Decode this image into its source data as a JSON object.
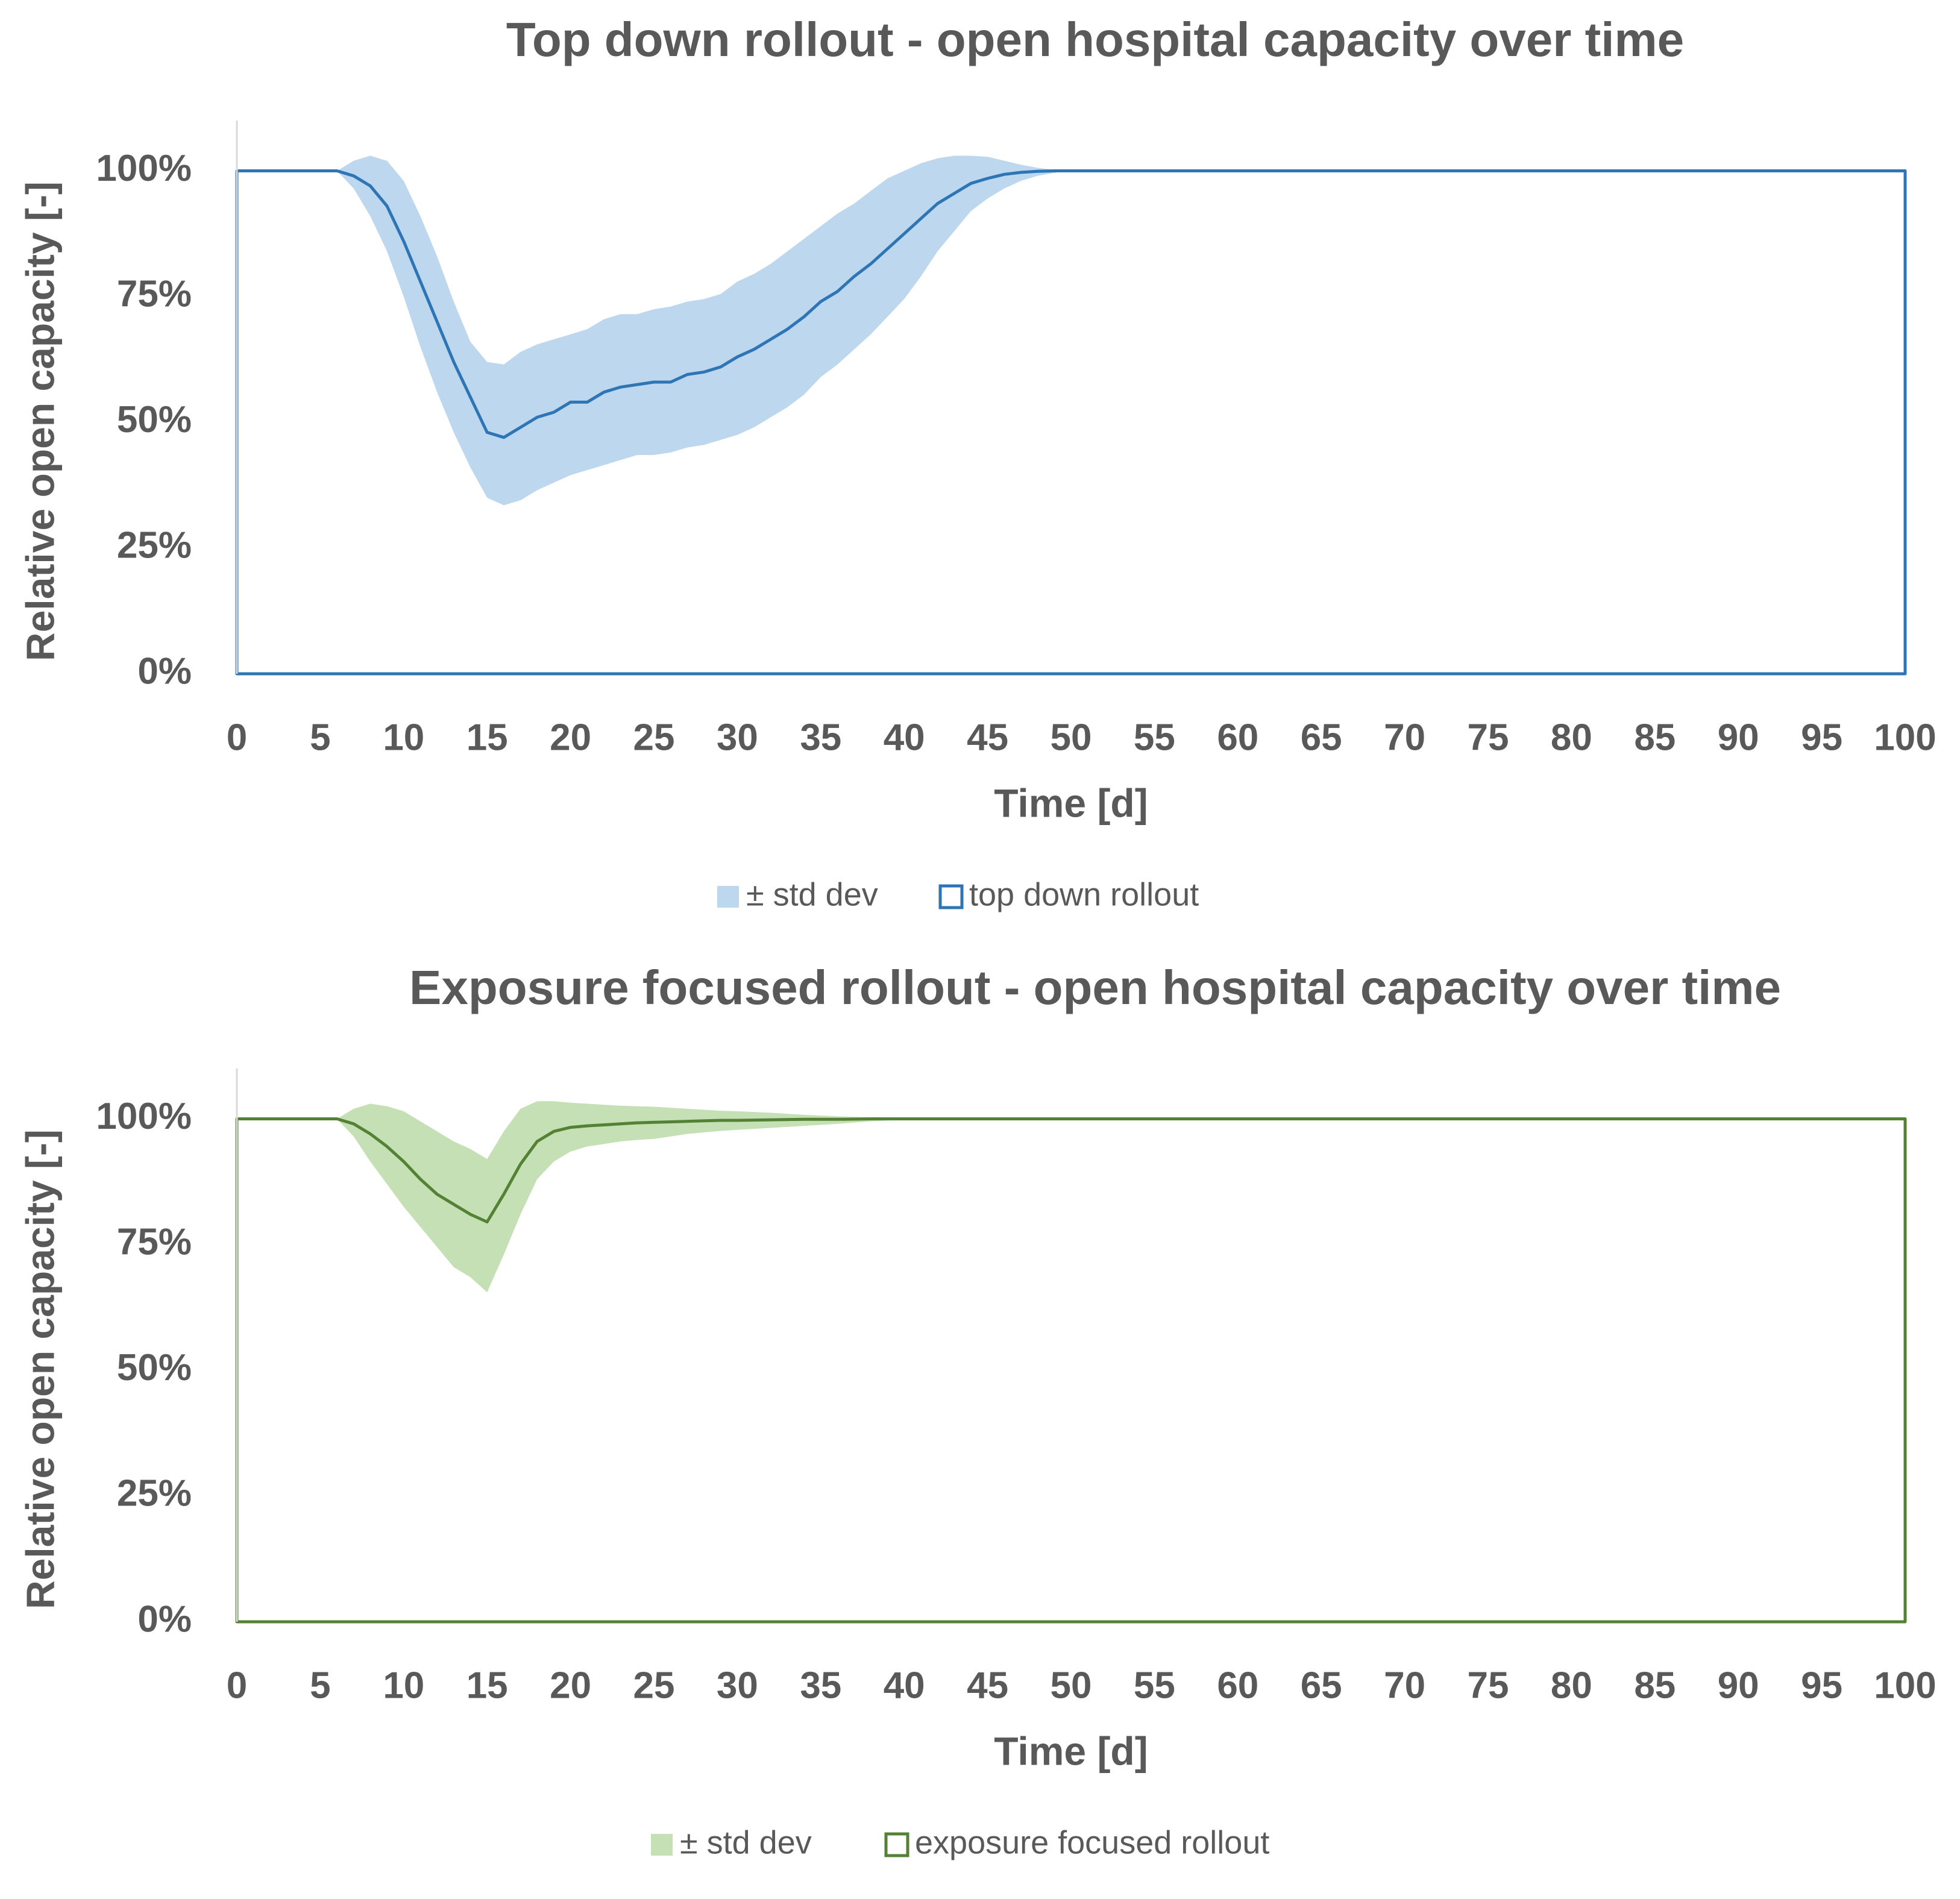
{
  "chart_data": [
    {
      "type": "line",
      "title": "Top down rollout - open hospital capacity over time",
      "xlabel": "Time [d]",
      "ylabel": "Relative open capacity [-]",
      "xlim": [
        0,
        100
      ],
      "ylim": [
        0,
        1.1
      ],
      "x_ticks": [
        "0",
        "5",
        "10",
        "15",
        "20",
        "25",
        "30",
        "35",
        "40",
        "45",
        "50",
        "55",
        "60",
        "65",
        "70",
        "75",
        "80",
        "85",
        "90",
        "95",
        "100"
      ],
      "y_ticks": [
        {
          "value": 0,
          "label": "0%"
        },
        {
          "value": 0.25,
          "label": "25%"
        },
        {
          "value": 0.5,
          "label": "50%"
        },
        {
          "value": 0.75,
          "label": "75%"
        },
        {
          "value": 1.0,
          "label": "100%"
        }
      ],
      "grid": false,
      "legend_position": "bottom-center",
      "colors": {
        "line": "#2e75b6",
        "band": "#bdd7ee",
        "text": "#595959"
      },
      "series": [
        {
          "name": "top down rollout",
          "x": [
            0,
            6,
            7,
            8,
            9,
            10,
            11,
            12,
            13,
            14,
            15,
            16,
            17,
            18,
            19,
            20,
            21,
            22,
            23,
            24,
            25,
            26,
            27,
            28,
            29,
            30,
            31,
            32,
            33,
            34,
            35,
            36,
            37,
            38,
            39,
            40,
            41,
            42,
            43,
            44,
            45,
            46,
            47,
            48,
            49,
            50,
            100
          ],
          "values": [
            1.0,
            1.0,
            0.99,
            0.97,
            0.93,
            0.86,
            0.78,
            0.7,
            0.62,
            0.55,
            0.48,
            0.47,
            0.49,
            0.51,
            0.52,
            0.54,
            0.54,
            0.56,
            0.57,
            0.575,
            0.58,
            0.58,
            0.595,
            0.6,
            0.61,
            0.63,
            0.645,
            0.665,
            0.685,
            0.71,
            0.74,
            0.76,
            0.79,
            0.815,
            0.845,
            0.875,
            0.905,
            0.935,
            0.955,
            0.975,
            0.985,
            0.993,
            0.997,
            0.999,
            1.0,
            1.0,
            1.0
          ]
        },
        {
          "name": "± std dev",
          "x": [
            0,
            6,
            7,
            8,
            9,
            10,
            11,
            12,
            13,
            14,
            15,
            16,
            17,
            18,
            19,
            20,
            21,
            22,
            23,
            24,
            25,
            26,
            27,
            28,
            29,
            30,
            31,
            32,
            33,
            34,
            35,
            36,
            37,
            38,
            39,
            40,
            41,
            42,
            43,
            44,
            45,
            46,
            47,
            48,
            49,
            50,
            100
          ],
          "upper": [
            1.0,
            1.0,
            1.02,
            1.03,
            1.02,
            0.98,
            0.91,
            0.83,
            0.74,
            0.66,
            0.62,
            0.615,
            0.64,
            0.655,
            0.665,
            0.675,
            0.685,
            0.705,
            0.715,
            0.715,
            0.725,
            0.73,
            0.74,
            0.745,
            0.755,
            0.78,
            0.795,
            0.815,
            0.84,
            0.865,
            0.89,
            0.915,
            0.935,
            0.96,
            0.985,
            1.0,
            1.015,
            1.025,
            1.03,
            1.03,
            1.028,
            1.02,
            1.012,
            1.006,
            1.002,
            1.0,
            1.0
          ],
          "lower": [
            1.0,
            1.0,
            0.965,
            0.91,
            0.84,
            0.75,
            0.65,
            0.56,
            0.48,
            0.41,
            0.35,
            0.335,
            0.345,
            0.365,
            0.38,
            0.395,
            0.405,
            0.415,
            0.425,
            0.435,
            0.435,
            0.44,
            0.45,
            0.455,
            0.465,
            0.475,
            0.49,
            0.51,
            0.53,
            0.555,
            0.59,
            0.615,
            0.645,
            0.675,
            0.71,
            0.745,
            0.79,
            0.84,
            0.88,
            0.92,
            0.945,
            0.965,
            0.98,
            0.99,
            0.996,
            1.0,
            1.0
          ]
        }
      ],
      "legend": [
        {
          "label": "± std dev"
        },
        {
          "label": "top down rollout"
        }
      ]
    },
    {
      "type": "line",
      "title": "Exposure focused rollout - open hospital capacity over time",
      "xlabel": "Time [d]",
      "ylabel": "Relative open capacity [-]",
      "xlim": [
        0,
        100
      ],
      "ylim": [
        0,
        1.1
      ],
      "x_ticks": [
        "0",
        "5",
        "10",
        "15",
        "20",
        "25",
        "30",
        "35",
        "40",
        "45",
        "50",
        "55",
        "60",
        "65",
        "70",
        "75",
        "80",
        "85",
        "90",
        "95",
        "100"
      ],
      "y_ticks": [
        {
          "value": 0,
          "label": "0%"
        },
        {
          "value": 0.25,
          "label": "25%"
        },
        {
          "value": 0.5,
          "label": "50%"
        },
        {
          "value": 0.75,
          "label": "75%"
        },
        {
          "value": 1.0,
          "label": "100%"
        }
      ],
      "grid": false,
      "legend_position": "bottom-center",
      "colors": {
        "line": "#548235",
        "band": "#c5e0b4",
        "text": "#595959"
      },
      "series": [
        {
          "name": "exposure focused rollout",
          "x": [
            0,
            6,
            7,
            8,
            9,
            10,
            11,
            12,
            13,
            14,
            15,
            16,
            17,
            18,
            19,
            20,
            21,
            22,
            23,
            24,
            25,
            26,
            27,
            28,
            29,
            30,
            32,
            34,
            36,
            38,
            40,
            45,
            100
          ],
          "values": [
            1.0,
            1.0,
            0.99,
            0.97,
            0.945,
            0.915,
            0.88,
            0.85,
            0.83,
            0.81,
            0.795,
            0.85,
            0.91,
            0.955,
            0.975,
            0.983,
            0.986,
            0.988,
            0.99,
            0.992,
            0.993,
            0.994,
            0.995,
            0.996,
            0.997,
            0.997,
            0.998,
            0.999,
            0.999,
            1.0,
            1.0,
            1.0,
            1.0
          ]
        },
        {
          "name": "± std dev",
          "x": [
            0,
            6,
            7,
            8,
            9,
            10,
            11,
            12,
            13,
            14,
            15,
            16,
            17,
            18,
            19,
            20,
            21,
            22,
            23,
            24,
            25,
            26,
            27,
            28,
            29,
            30,
            32,
            34,
            36,
            38,
            40,
            45,
            100
          ],
          "upper": [
            1.0,
            1.0,
            1.02,
            1.03,
            1.025,
            1.015,
            0.995,
            0.975,
            0.955,
            0.94,
            0.92,
            0.975,
            1.02,
            1.035,
            1.035,
            1.032,
            1.03,
            1.028,
            1.026,
            1.025,
            1.024,
            1.022,
            1.02,
            1.018,
            1.016,
            1.015,
            1.012,
            1.008,
            1.005,
            1.003,
            1.001,
            1.0,
            1.0
          ],
          "lower": [
            1.0,
            1.0,
            0.965,
            0.915,
            0.87,
            0.825,
            0.785,
            0.745,
            0.705,
            0.685,
            0.655,
            0.73,
            0.81,
            0.88,
            0.915,
            0.935,
            0.945,
            0.95,
            0.955,
            0.958,
            0.96,
            0.965,
            0.97,
            0.973,
            0.976,
            0.978,
            0.982,
            0.986,
            0.99,
            0.995,
            0.998,
            1.0,
            1.0
          ]
        }
      ],
      "legend": [
        {
          "label": "± std dev"
        },
        {
          "label": "exposure focused rollout"
        }
      ]
    }
  ]
}
